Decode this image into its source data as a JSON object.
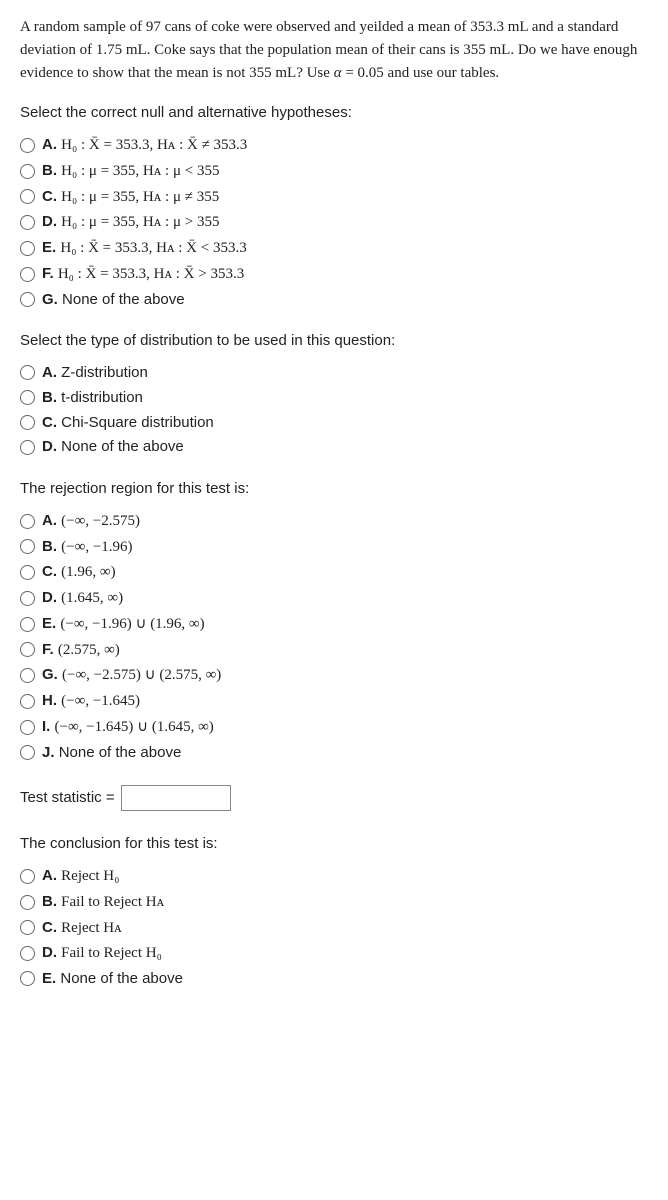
{
  "intro": "A random sample of 97 cans of coke were observed and yeilded a mean of 353.3 mL and a standard deviation of 1.75 mL. Coke says that the population mean of their cans is 355 mL. Do we have enough evidence to show that the mean is not 355 mL? Use α = 0.05 and use our tables.",
  "q1": {
    "prompt": "Select the correct null and alternative hypotheses:",
    "options": [
      {
        "letter": "A.",
        "text": "H₀ : X̄ = 353.3, Hᴀ : X̄ ≠ 353.3"
      },
      {
        "letter": "B.",
        "text": "H₀ : μ = 355, Hᴀ : μ < 355"
      },
      {
        "letter": "C.",
        "text": "H₀ : μ = 355, Hᴀ : μ ≠ 355"
      },
      {
        "letter": "D.",
        "text": "H₀ : μ = 355, Hᴀ : μ > 355"
      },
      {
        "letter": "E.",
        "text": "H₀ : X̄ = 353.3, Hᴀ : X̄ < 353.3"
      },
      {
        "letter": "F.",
        "text": "H₀ : X̄ = 353.3, Hᴀ : X̄ > 353.3"
      },
      {
        "letter": "G.",
        "text": "None of the above"
      }
    ]
  },
  "q2": {
    "prompt": "Select the type of distribution to be used in this question:",
    "options": [
      {
        "letter": "A.",
        "text": "Z-distribution"
      },
      {
        "letter": "B.",
        "text": "t-distribution"
      },
      {
        "letter": "C.",
        "text": "Chi-Square distribution"
      },
      {
        "letter": "D.",
        "text": "None of the above"
      }
    ]
  },
  "q3": {
    "prompt": "The rejection region for this test is:",
    "options": [
      {
        "letter": "A.",
        "text": "(−∞, −2.575)"
      },
      {
        "letter": "B.",
        "text": "(−∞, −1.96)"
      },
      {
        "letter": "C.",
        "text": "(1.96, ∞)"
      },
      {
        "letter": "D.",
        "text": "(1.645, ∞)"
      },
      {
        "letter": "E.",
        "text": "(−∞, −1.96) ∪ (1.96, ∞)"
      },
      {
        "letter": "F.",
        "text": "(2.575, ∞)"
      },
      {
        "letter": "G.",
        "text": "(−∞, −2.575) ∪ (2.575, ∞)"
      },
      {
        "letter": "H.",
        "text": "(−∞, −1.645)"
      },
      {
        "letter": "I.",
        "text": "(−∞, −1.645) ∪ (1.645, ∞)"
      },
      {
        "letter": "J.",
        "text": "None of the above"
      }
    ]
  },
  "q4": {
    "label": "Test statistic ="
  },
  "q5": {
    "prompt": "The conclusion for this test is:",
    "options": [
      {
        "letter": "A.",
        "text": "Reject H₀"
      },
      {
        "letter": "B.",
        "text": "Fail to Reject Hᴀ"
      },
      {
        "letter": "C.",
        "text": "Reject Hᴀ"
      },
      {
        "letter": "D.",
        "text": "Fail to Reject H₀"
      },
      {
        "letter": "E.",
        "text": "None of the above"
      }
    ]
  }
}
